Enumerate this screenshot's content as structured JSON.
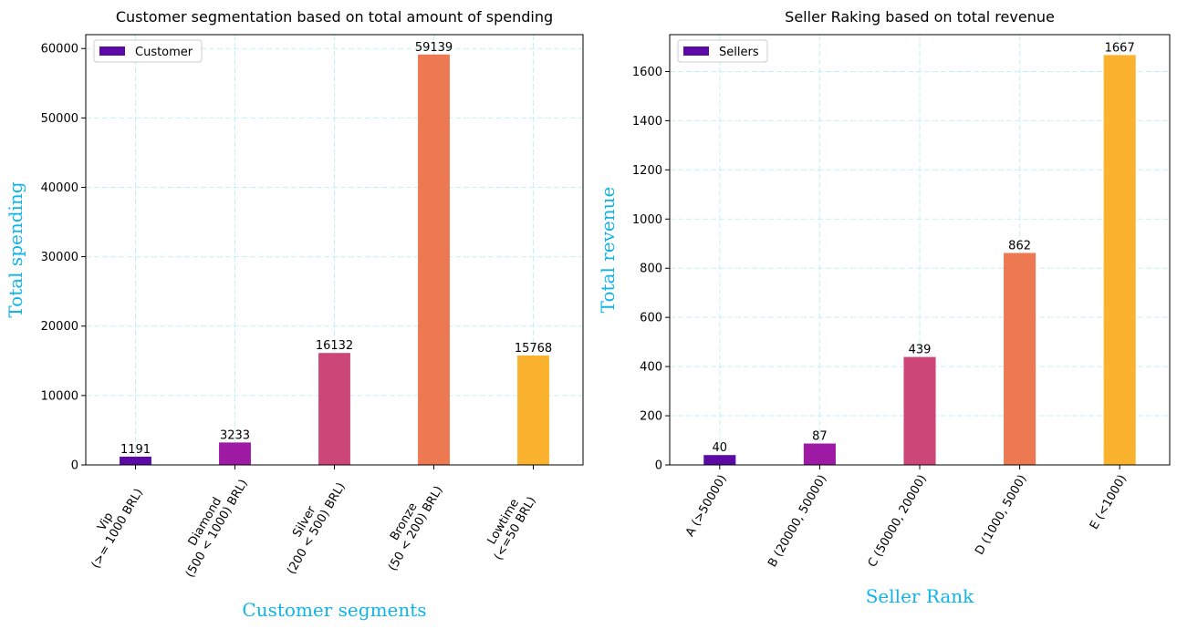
{
  "chart_data": [
    {
      "type": "bar",
      "title": "Customer segmentation based on total amount of spending",
      "xlabel": "Customer segments",
      "ylabel": "Total spending",
      "categories": [
        [
          "Vip",
          "(>= 1000 BRL)"
        ],
        [
          "Diamond",
          "(500 < 1000) BRL)"
        ],
        [
          "Silver",
          "(200 < 500) BRL)"
        ],
        [
          "Bronze",
          "(50 < 200) BRL)"
        ],
        [
          "Lowtime",
          "(<=50 BRL)"
        ]
      ],
      "series": [
        {
          "name": "Customer",
          "values": [
            1191,
            3233,
            16132,
            59139,
            15768
          ]
        }
      ],
      "colors": [
        "#5c0aa6",
        "#9e1aa4",
        "#cc4778",
        "#ed7953",
        "#fbb32f"
      ],
      "ylim": [
        0,
        62000
      ],
      "yticks": [
        0,
        10000,
        20000,
        30000,
        40000,
        50000,
        60000
      ],
      "grid": true,
      "legend_position": "upper-left"
    },
    {
      "type": "bar",
      "title": "Seller Raking based on total revenue",
      "xlabel": "Seller Rank",
      "ylabel": "Total revenue",
      "categories": [
        [
          "A (>50000)"
        ],
        [
          "B (20000, 50000)"
        ],
        [
          "C (50000, 20000)"
        ],
        [
          "D (1000, 5000)"
        ],
        [
          "E (<1000)"
        ]
      ],
      "series": [
        {
          "name": "Sellers",
          "values": [
            40,
            87,
            439,
            862,
            1667
          ]
        }
      ],
      "colors": [
        "#5c0aa6",
        "#9e1aa4",
        "#cc4778",
        "#ed7953",
        "#fbb32f"
      ],
      "ylim": [
        0,
        1750
      ],
      "yticks": [
        0,
        200,
        400,
        600,
        800,
        1000,
        1200,
        1400,
        1600
      ],
      "grid": true,
      "legend_position": "upper-left"
    }
  ]
}
